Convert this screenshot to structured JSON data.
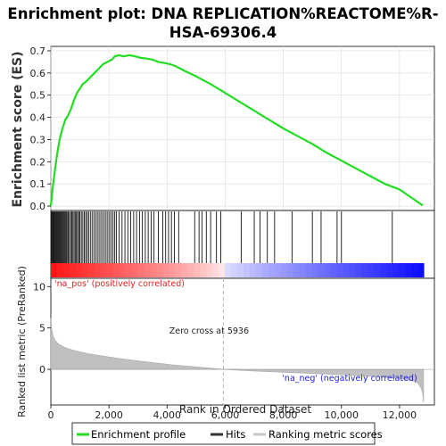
{
  "chart_data": {
    "type": "line",
    "title": "Enrichment plot: DNA REPLICATION%REACTOME%R-HSA-69306.4",
    "title_lines": [
      "Enrichment plot: DNA REPLICATION%REACTOME%R-",
      "HSA-69306.4"
    ],
    "xlabel": "Rank in Ordered Dataset",
    "ylabel_top": "Enrichment score (ES)",
    "ylabel_bottom": "Ranked list metric (PreRanked)",
    "xlim": [
      0,
      13200
    ],
    "es_ylim": [
      -0.02,
      0.72
    ],
    "metric_ylim": [
      -4.3,
      11
    ],
    "x_ticks": [
      0,
      2000,
      4000,
      6000,
      8000,
      10000,
      12000
    ],
    "x_tick_labels": [
      "0",
      "2,000",
      "4,000",
      "6,000",
      "8,000",
      "10,000",
      "12,000"
    ],
    "es_ticks": [
      0.0,
      0.1,
      0.2,
      0.3,
      0.4,
      0.5,
      0.6,
      0.7
    ],
    "es_tick_labels": [
      "0.0",
      "0.1",
      "0.2",
      "0.3",
      "0.4",
      "0.5",
      "0.6",
      "0.7"
    ],
    "metric_ticks": [
      0,
      5,
      10
    ],
    "metric_tick_labels": [
      "0",
      "5",
      "10"
    ],
    "enrichment_profile": {
      "x": [
        0,
        60,
        120,
        200,
        300,
        400,
        500,
        600,
        700,
        800,
        900,
        1000,
        1100,
        1200,
        1350,
        1500,
        1650,
        1800,
        1950,
        2100,
        2200,
        2350,
        2500,
        2700,
        2900,
        3100,
        3300,
        3500,
        3700,
        3900,
        4100,
        4300,
        4600,
        5000,
        5500,
        6000,
        6500,
        7000,
        7500,
        8000,
        8500,
        9000,
        9500,
        10000,
        10500,
        11000,
        11500,
        12000,
        12500,
        12800
      ],
      "y": [
        0.0,
        0.08,
        0.14,
        0.22,
        0.3,
        0.35,
        0.39,
        0.41,
        0.44,
        0.48,
        0.51,
        0.53,
        0.55,
        0.56,
        0.58,
        0.6,
        0.62,
        0.64,
        0.65,
        0.66,
        0.675,
        0.68,
        0.675,
        0.68,
        0.675,
        0.668,
        0.665,
        0.66,
        0.65,
        0.645,
        0.64,
        0.63,
        0.61,
        0.585,
        0.55,
        0.51,
        0.47,
        0.43,
        0.39,
        0.35,
        0.315,
        0.28,
        0.24,
        0.205,
        0.17,
        0.135,
        0.1,
        0.075,
        0.03,
        0.003
      ]
    },
    "hits": [
      20,
      45,
      70,
      95,
      120,
      150,
      175,
      200,
      230,
      260,
      290,
      320,
      350,
      380,
      410,
      440,
      470,
      500,
      530,
      560,
      600,
      640,
      680,
      720,
      760,
      800,
      840,
      880,
      920,
      960,
      1000,
      1050,
      1100,
      1150,
      1200,
      1250,
      1300,
      1360,
      1420,
      1480,
      1540,
      1600,
      1660,
      1720,
      1780,
      1840,
      1900,
      1960,
      2020,
      2080,
      2140,
      2200,
      2260,
      2350,
      2450,
      2550,
      2650,
      2750,
      2850,
      2950,
      3050,
      3150,
      3250,
      3350,
      3450,
      3550,
      3700,
      3850,
      3950,
      4050,
      4150,
      4250,
      4400,
      4950,
      5100,
      5200,
      5350,
      5500,
      5700,
      5850,
      6550,
      7000,
      7200,
      7450,
      7700,
      8300,
      9000,
      9300,
      9850,
      10000,
      11750
    ],
    "zero_cross": 5936,
    "zero_cross_label": "Zero cross at 5936",
    "pos_label": "'na_pos' (positively correlated)",
    "neg_label": "'na_neg' (negatively correlated)",
    "metric_curve": {
      "x": [
        0,
        30,
        80,
        150,
        250,
        400,
        600,
        900,
        1300,
        1800,
        2500,
        3300,
        4200,
        5000,
        5936,
        7000,
        8000,
        9000,
        10000,
        10800,
        11500,
        12000,
        12300,
        12500,
        12650,
        12750,
        12800,
        12830
      ],
      "y": [
        6.2,
        4.8,
        4.0,
        3.5,
        3.1,
        2.8,
        2.5,
        2.2,
        1.9,
        1.6,
        1.25,
        0.9,
        0.55,
        0.3,
        0.0,
        -0.2,
        -0.35,
        -0.5,
        -0.65,
        -0.8,
        -0.95,
        -1.1,
        -1.25,
        -1.45,
        -1.75,
        -2.3,
        -3.0,
        -4.0
      ]
    },
    "series": [
      {
        "name": "Enrichment profile",
        "color": "#22dd22"
      },
      {
        "name": "Hits",
        "color": "#333333"
      },
      {
        "name": "Ranking metric scores",
        "color": "#c8c8c8"
      }
    ],
    "legend_position": "bottom"
  }
}
